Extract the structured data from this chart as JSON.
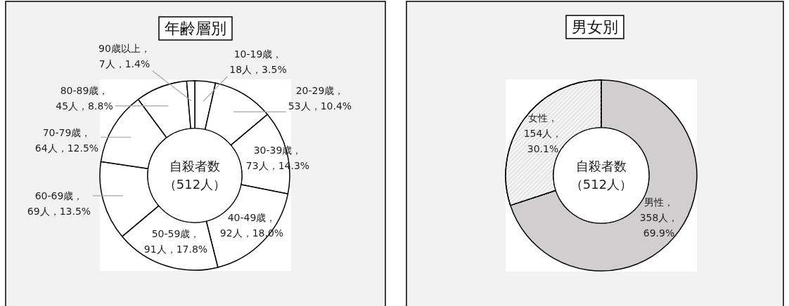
{
  "chart_data": [
    {
      "type": "donut",
      "title": "年齢層別",
      "categories": [
        "10-19歳",
        "20-29歳",
        "30-39歳",
        "40-49歳",
        "50-59歳",
        "60-69歳",
        "70-79歳",
        "80-89歳",
        "90歳以上"
      ],
      "values": [
        18,
        53,
        73,
        92,
        91,
        69,
        64,
        45,
        7
      ],
      "colors": [
        "#ffffff",
        "#ffffff",
        "#ffffff",
        "#ffffff",
        "#ffffff",
        "#ffffff",
        "#ffffff",
        "#ffffff",
        "#ffffff"
      ],
      "value_labels": [
        "，18人，3.5%",
        "，53人，10.4%",
        "，73人，14.3%",
        "，92人，18.0%",
        "，91人，17.8%",
        "，69人，13.5%",
        "，64人，12.5%",
        "，45人，8.8%",
        "，7人，1.4%"
      ],
      "annotations": [
        "自殺者数",
        "（512人）"
      ]
    },
    {
      "type": "donut",
      "title": "男女別",
      "categories": [
        "男性",
        "女性"
      ],
      "values": [
        358,
        154
      ],
      "colors": [
        "#d0cece",
        "#e6e6e6"
      ],
      "value_labels": [
        "，358人，69.9%",
        "，154人，30.1%"
      ],
      "annotations": [
        "自殺者数",
        "（512人）"
      ]
    }
  ]
}
